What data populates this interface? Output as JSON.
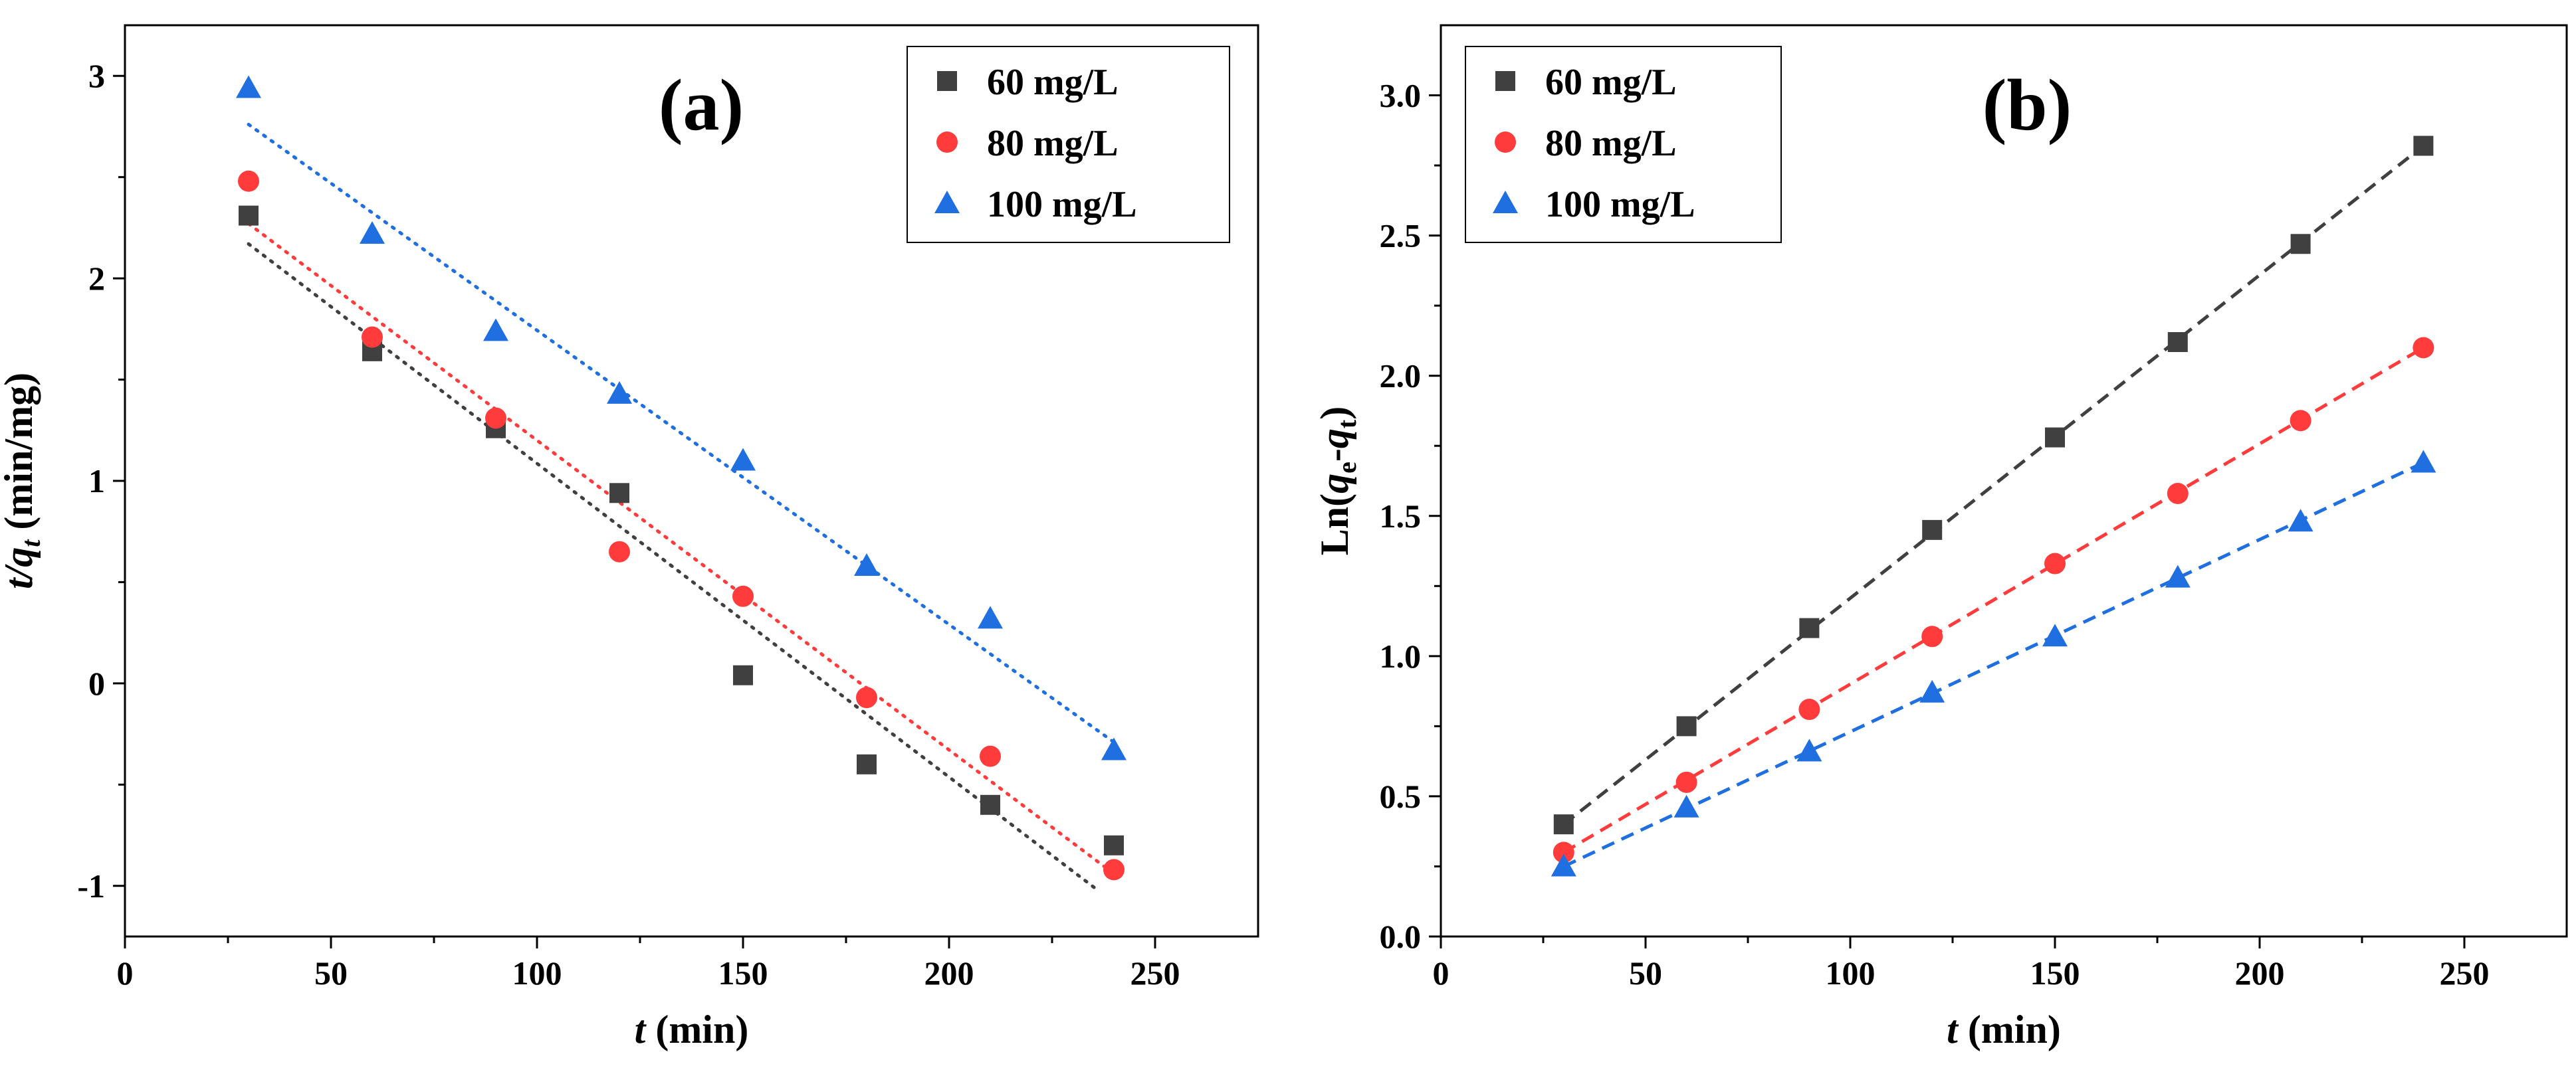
{
  "chart_data": [
    {
      "type": "scatter",
      "panel_label": "(a)",
      "xlabel": {
        "italic": "t",
        "rest": " (min)"
      },
      "ylabel": {
        "italic": "t/q",
        "sub": "t",
        "rest": " (min/mg)"
      },
      "xlim": [
        0,
        275
      ],
      "ylim": [
        -1.25,
        3.25
      ],
      "xticks": [
        0,
        50,
        100,
        150,
        200,
        250
      ],
      "xtick_labels": [
        "0",
        "50",
        "100",
        "150",
        "200",
        "250"
      ],
      "yticks": [
        -1,
        0,
        1,
        2,
        3
      ],
      "ytick_labels": [
        "-1",
        "0",
        "1",
        "2",
        "3"
      ],
      "legend_position": "top-right",
      "fit_style": "dotted",
      "series": [
        {
          "name": "60 mg/L",
          "marker": "square",
          "color": "#404040",
          "x": [
            30,
            60,
            90,
            120,
            150,
            180,
            210,
            240
          ],
          "y": [
            2.31,
            1.64,
            1.26,
            0.94,
            0.04,
            -0.4,
            -0.6,
            -0.8
          ],
          "fit": {
            "x": [
              30,
              236
            ],
            "y": [
              2.17,
              -1.02
            ]
          }
        },
        {
          "name": "80 mg/L",
          "marker": "circle",
          "color": "#ff3b3b",
          "x": [
            30,
            60,
            90,
            120,
            150,
            180,
            210,
            240
          ],
          "y": [
            2.48,
            1.71,
            1.31,
            0.65,
            0.43,
            -0.07,
            -0.36,
            -0.92
          ],
          "fit": {
            "x": [
              30,
              240
            ],
            "y": [
              2.27,
              -0.94
            ]
          }
        },
        {
          "name": "100 mg/L",
          "marker": "triangle",
          "color": "#1f6fe0",
          "x": [
            30,
            60,
            90,
            120,
            150,
            180,
            210,
            240
          ],
          "y": [
            2.94,
            2.22,
            1.74,
            1.43,
            1.1,
            0.58,
            0.32,
            -0.33
          ],
          "fit": {
            "x": [
              30,
              240
            ],
            "y": [
              2.76,
              -0.29
            ]
          }
        }
      ]
    },
    {
      "type": "scatter",
      "panel_label": "(b)",
      "xlabel": {
        "italic": "t",
        "rest": " (min)"
      },
      "ylabel": {
        "prefix": "Ln(",
        "italic1": "q",
        "sub1": "e",
        "mid": "-",
        "italic2": "q",
        "sub2": "t",
        "suffix": ")"
      },
      "xlim": [
        0,
        275
      ],
      "ylim": [
        0,
        3.25
      ],
      "xticks": [
        0,
        50,
        100,
        150,
        200,
        250
      ],
      "xtick_labels": [
        "0",
        "50",
        "100",
        "150",
        "200",
        "250"
      ],
      "yticks": [
        0,
        0.5,
        1,
        1.5,
        2,
        2.5,
        3
      ],
      "ytick_labels": [
        "0.0",
        "0.5",
        "1.0",
        "1.5",
        "2.0",
        "2.5",
        "3.0"
      ],
      "legend_position": "top-left",
      "fit_style": "dashed",
      "series": [
        {
          "name": "60 mg/L",
          "marker": "square",
          "color": "#404040",
          "x": [
            30,
            60,
            90,
            120,
            150,
            180,
            210,
            240
          ],
          "y": [
            0.4,
            0.75,
            1.1,
            1.45,
            1.78,
            2.12,
            2.47,
            2.82
          ],
          "fit": {
            "x": [
              30,
              240
            ],
            "y": [
              0.4,
              2.82
            ]
          }
        },
        {
          "name": "80 mg/L",
          "marker": "circle",
          "color": "#ff3b3b",
          "x": [
            30,
            60,
            90,
            120,
            150,
            180,
            210,
            240
          ],
          "y": [
            0.3,
            0.55,
            0.81,
            1.07,
            1.33,
            1.58,
            1.84,
            2.1
          ],
          "fit": {
            "x": [
              30,
              240
            ],
            "y": [
              0.3,
              2.1
            ]
          }
        },
        {
          "name": "100 mg/L",
          "marker": "triangle",
          "color": "#1f6fe0",
          "x": [
            30,
            60,
            90,
            120,
            150,
            180,
            210,
            240
          ],
          "y": [
            0.25,
            0.46,
            0.66,
            0.87,
            1.07,
            1.28,
            1.48,
            1.69
          ],
          "fit": {
            "x": [
              30,
              240
            ],
            "y": [
              0.25,
              1.69
            ]
          }
        }
      ]
    }
  ]
}
